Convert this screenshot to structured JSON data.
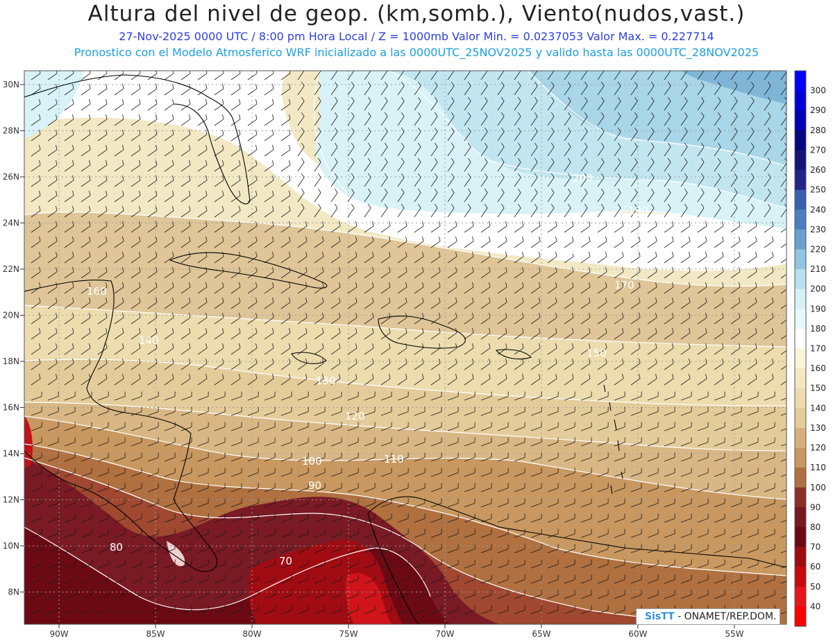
{
  "title": "Altura del nivel de geop. (km,somb.), Viento(nudos,vast.)",
  "subtitle_line1": "27-Nov-2025  0000 UTC / 8:00 pm Hora Local / Z = 1000mb  Valor Min. = 0.0237053  Valor Max. = 0.227714",
  "subtitle_line2": "Pronostico con el Modelo Atmosferico WRF inicializado a las 0000UTC_25NOV2025 y valido hasta las  0000UTC_28NOV2025",
  "latitude_labels": [
    "30N",
    "28N",
    "26N",
    "24N",
    "22N",
    "20N",
    "18N",
    "16N",
    "14N",
    "12N",
    "10N",
    "8N"
  ],
  "longitude_labels": [
    "90W",
    "85W",
    "80W",
    "75W",
    "70W",
    "65W",
    "60W",
    "55W"
  ],
  "colorbar": {
    "levels": [
      "300",
      "290",
      "280",
      "270",
      "260",
      "250",
      "240",
      "230",
      "220",
      "210",
      "200",
      "190",
      "180",
      "170",
      "160",
      "150",
      "140",
      "130",
      "120",
      "110",
      "100",
      "90",
      "80",
      "70",
      "60",
      "50",
      "40"
    ],
    "colors": [
      "#0000ff",
      "#0000dc",
      "#0000b4",
      "#060680",
      "#14147a",
      "#23238c",
      "#3a5fb0",
      "#4a7ec0",
      "#6aa0d0",
      "#90c4e0",
      "#b8e0ee",
      "#d6f0f6",
      "#e6f8fa",
      "#ffffff",
      "#faf3d6",
      "#f3e7c0",
      "#ecdcae",
      "#e4cc9a",
      "#d6b07c",
      "#c89860",
      "#b07040",
      "#8c2e28",
      "#781820",
      "#6c0a14",
      "#9c0c10",
      "#c80a0a",
      "#e6161c",
      "#ff0000"
    ]
  },
  "contour_labels": [
    "200",
    "190",
    "180",
    "170",
    "160",
    "150",
    "140",
    "130",
    "120",
    "110",
    "100",
    "90",
    "80",
    "70"
  ],
  "credit": {
    "logo": "SisTT",
    "text": "- ONAMET/REP.DOM."
  },
  "colors": {
    "title": "#222222",
    "subtitle_line1": "#2e3ee0",
    "subtitle_line2": "#1b9fe0",
    "coastline": "#000000",
    "contour": "#ffffff",
    "grid": "#a0a0a0",
    "wind_barb": "#1a1a1a"
  }
}
